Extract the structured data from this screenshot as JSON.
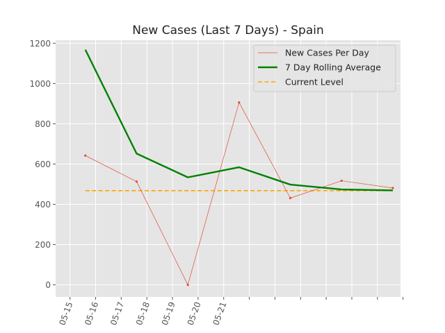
{
  "chart_data": {
    "type": "line",
    "title": "New Cases (Last 7 Days) - Spain",
    "xlabel": "",
    "ylabel": "",
    "x_tick_labels": [
      "05-15",
      "05-16",
      "05-17",
      "05-18",
      "05-19",
      "05-20",
      "05-21"
    ],
    "x_tick_positions": [
      0,
      0.5,
      1,
      1.5,
      2,
      2.5,
      3,
      3.5,
      4,
      4.5,
      5,
      5.5,
      6,
      6.5
    ],
    "xlim": [
      -0.28,
      6.45
    ],
    "ylim": [
      -60,
      1215
    ],
    "y_ticks": [
      0,
      200,
      400,
      600,
      800,
      1000,
      1200
    ],
    "grid": true,
    "legend_position": "top-right",
    "x": [
      0.3,
      1.3,
      2.3,
      3.3,
      4.3,
      5.3,
      6.3
    ],
    "series": [
      {
        "name": "New Cases Per Day",
        "style": "thin-line-markers",
        "color": "#E24A33",
        "values": [
          642,
          513,
          0,
          906,
          431,
          517,
          481
        ]
      },
      {
        "name": "7 Day Rolling Average",
        "style": "thick-line",
        "color": "#008000",
        "values": [
          1168,
          652,
          534,
          584,
          498,
          474,
          469
        ]
      },
      {
        "name": "Current Level",
        "style": "dashed",
        "color": "#FFA500",
        "values": [
          468,
          468,
          468,
          468,
          468,
          468,
          468
        ]
      }
    ],
    "colors": {
      "plot_background": "#E5E5E5",
      "grid": "#FFFFFF"
    }
  }
}
